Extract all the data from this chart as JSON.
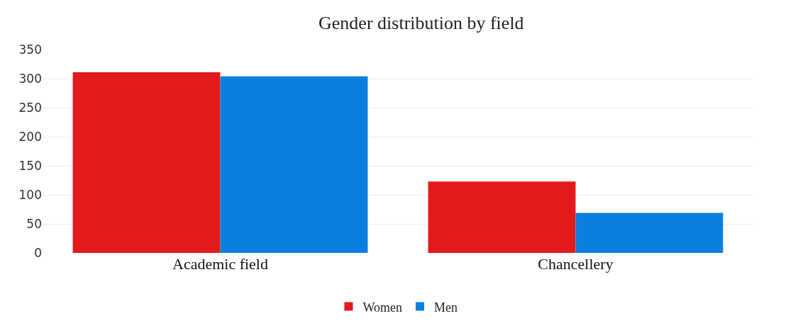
{
  "chart_data": {
    "type": "bar",
    "title": "Gender distribution by field",
    "categories": [
      "Academic field",
      "Chancellery"
    ],
    "series": [
      {
        "name": "Women",
        "color": "#e31a1c",
        "values": [
          311,
          123
        ]
      },
      {
        "name": "Men",
        "color": "#0a7fe0",
        "values": [
          304,
          69
        ]
      }
    ],
    "ylim": [
      0,
      350
    ],
    "yticks": [
      0,
      50,
      100,
      150,
      200,
      250,
      300,
      350
    ],
    "grid": "y",
    "legend": "bottom"
  }
}
